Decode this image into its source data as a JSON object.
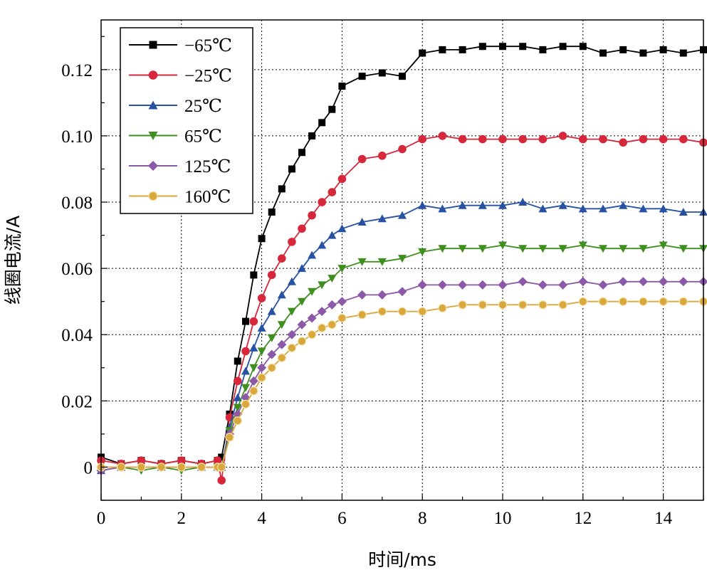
{
  "chart_data": {
    "type": "line",
    "title": "",
    "xlabel": "时间/ms",
    "ylabel": "线圈电流/A",
    "xlim": [
      0,
      15
    ],
    "ylim": [
      -0.01,
      0.135
    ],
    "grid": true,
    "legend_position": "top-left",
    "x_ticks": [
      {
        "value": 0,
        "label": "0"
      },
      {
        "value": 2,
        "label": "2"
      },
      {
        "value": 4,
        "label": "4"
      },
      {
        "value": 6,
        "label": "6"
      },
      {
        "value": 8,
        "label": "8"
      },
      {
        "value": 10,
        "label": "10"
      },
      {
        "value": 12,
        "label": "12"
      },
      {
        "value": 14,
        "label": "14"
      }
    ],
    "y_ticks": [
      {
        "value": 0,
        "label": "0"
      },
      {
        "value": 0.02,
        "label": "0.02"
      },
      {
        "value": 0.04,
        "label": "0.04"
      },
      {
        "value": 0.06,
        "label": "0.06"
      },
      {
        "value": 0.08,
        "label": "0.08"
      },
      {
        "value": 0.1,
        "label": "0.10"
      },
      {
        "value": 0.12,
        "label": "0.12"
      }
    ],
    "x": [
      0,
      0.5,
      1,
      1.5,
      2,
      2.5,
      2.9,
      3.0,
      3.2,
      3.4,
      3.6,
      3.8,
      4.0,
      4.25,
      4.5,
      4.75,
      5.0,
      5.25,
      5.5,
      5.75,
      6.0,
      6.5,
      7.0,
      7.5,
      8.0,
      8.5,
      9.0,
      9.5,
      10.0,
      10.5,
      11.0,
      11.5,
      12.0,
      12.5,
      13.0,
      13.5,
      14.0,
      14.5,
      15.0
    ],
    "series": [
      {
        "name": "−65℃",
        "color": "#000000",
        "marker": "square",
        "values": [
          0.003,
          0.001,
          0.002,
          0.001,
          0.002,
          0.001,
          0.002,
          0.003,
          0.016,
          0.032,
          0.044,
          0.058,
          0.069,
          0.077,
          0.084,
          0.09,
          0.095,
          0.1,
          0.104,
          0.108,
          0.115,
          0.118,
          0.119,
          0.118,
          0.125,
          0.126,
          0.126,
          0.127,
          0.127,
          0.127,
          0.126,
          0.127,
          0.127,
          0.125,
          0.126,
          0.125,
          0.126,
          0.125,
          0.126
        ]
      },
      {
        "name": "−25℃",
        "color": "#d6283a",
        "marker": "circle",
        "values": [
          0.002,
          0.001,
          0.002,
          0.001,
          0.002,
          0.001,
          0.002,
          -0.004,
          0.015,
          0.026,
          0.035,
          0.044,
          0.051,
          0.058,
          0.063,
          0.068,
          0.072,
          0.076,
          0.08,
          0.083,
          0.087,
          0.093,
          0.094,
          0.096,
          0.099,
          0.1,
          0.099,
          0.099,
          0.099,
          0.099,
          0.099,
          0.1,
          0.099,
          0.099,
          0.098,
          0.099,
          0.099,
          0.099,
          0.098
        ]
      },
      {
        "name": "25℃",
        "color": "#2751a3",
        "marker": "triangle-up",
        "values": [
          -0.001,
          0.0,
          0.0,
          0.0,
          0.0,
          0.0,
          0.0,
          0.0,
          0.012,
          0.021,
          0.029,
          0.036,
          0.042,
          0.047,
          0.052,
          0.056,
          0.06,
          0.064,
          0.067,
          0.07,
          0.072,
          0.074,
          0.075,
          0.076,
          0.079,
          0.078,
          0.079,
          0.079,
          0.079,
          0.08,
          0.078,
          0.079,
          0.078,
          0.078,
          0.079,
          0.078,
          0.078,
          0.077,
          0.077
        ]
      },
      {
        "name": "65℃",
        "color": "#3f8f1f",
        "marker": "triangle-down",
        "values": [
          -0.001,
          0.0,
          -0.001,
          0.0,
          -0.001,
          0.0,
          0.0,
          0.0,
          0.011,
          0.018,
          0.024,
          0.03,
          0.035,
          0.039,
          0.043,
          0.047,
          0.05,
          0.053,
          0.055,
          0.057,
          0.06,
          0.062,
          0.062,
          0.063,
          0.065,
          0.066,
          0.066,
          0.066,
          0.067,
          0.066,
          0.066,
          0.066,
          0.067,
          0.066,
          0.066,
          0.066,
          0.067,
          0.066,
          0.066
        ]
      },
      {
        "name": "125℃",
        "color": "#8c58a8",
        "marker": "diamond",
        "values": [
          -0.001,
          0.0,
          0.0,
          0.0,
          0.0,
          0.0,
          0.0,
          0.0,
          0.01,
          0.016,
          0.021,
          0.026,
          0.03,
          0.034,
          0.037,
          0.04,
          0.043,
          0.045,
          0.047,
          0.049,
          0.05,
          0.052,
          0.052,
          0.053,
          0.055,
          0.055,
          0.055,
          0.055,
          0.055,
          0.056,
          0.055,
          0.055,
          0.056,
          0.055,
          0.056,
          0.056,
          0.056,
          0.056,
          0.056
        ]
      },
      {
        "name": "160℃",
        "color": "#d9a83c",
        "marker": "circle-open",
        "values": [
          0.0,
          0.0,
          0.0,
          0.0,
          0.0,
          0.0,
          0.0,
          0.0,
          0.009,
          0.014,
          0.019,
          0.023,
          0.027,
          0.03,
          0.033,
          0.036,
          0.038,
          0.04,
          0.042,
          0.043,
          0.045,
          0.046,
          0.047,
          0.047,
          0.047,
          0.048,
          0.049,
          0.049,
          0.049,
          0.049,
          0.049,
          0.049,
          0.05,
          0.05,
          0.05,
          0.05,
          0.05,
          0.05,
          0.05
        ]
      }
    ]
  }
}
